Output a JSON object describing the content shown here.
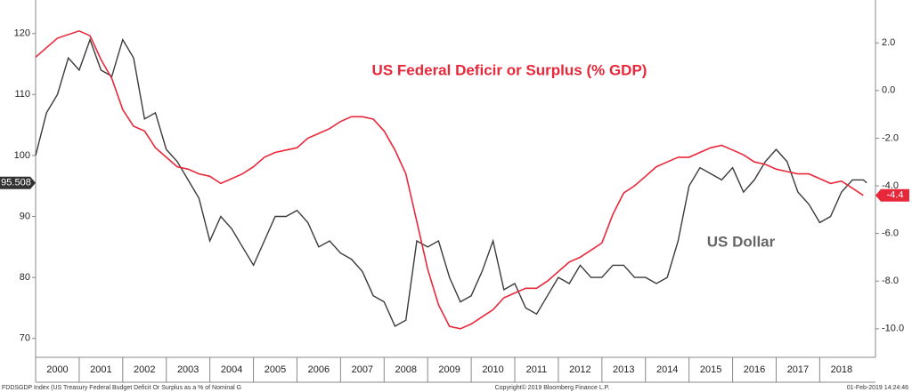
{
  "chart_data": {
    "type": "line",
    "xlim": [
      2000,
      2019.28
    ],
    "xticks": [
      {
        "value": 2000,
        "label": "2000"
      },
      {
        "value": 2001,
        "label": "2001"
      },
      {
        "value": 2002,
        "label": "2002"
      },
      {
        "value": 2003,
        "label": "2003"
      },
      {
        "value": 2004,
        "label": "2004"
      },
      {
        "value": 2005,
        "label": "2005"
      },
      {
        "value": 2006,
        "label": "2006"
      },
      {
        "value": 2007,
        "label": "2007"
      },
      {
        "value": 2008,
        "label": "2008"
      },
      {
        "value": 2009,
        "label": "2009"
      },
      {
        "value": 2010,
        "label": "2010"
      },
      {
        "value": 2011,
        "label": "2011"
      },
      {
        "value": 2012,
        "label": "2012"
      },
      {
        "value": 2013,
        "label": "2013"
      },
      {
        "value": 2014,
        "label": "2014"
      },
      {
        "value": 2015,
        "label": "2015"
      },
      {
        "value": 2016,
        "label": "2016"
      },
      {
        "value": 2017,
        "label": "2017"
      },
      {
        "value": 2018,
        "label": "2018"
      }
    ],
    "ylim": [
      66.9,
      125.5
    ],
    "yticks": [
      70,
      80,
      90,
      100,
      110,
      120
    ],
    "y2lim": [
      -11.2,
      3.8
    ],
    "y2ticks": [
      {
        "value": 2,
        "label": "2.0"
      },
      {
        "value": 0,
        "label": "0.0"
      },
      {
        "value": -2,
        "label": "-2.0"
      },
      {
        "value": -4,
        "label": "-4.0"
      },
      {
        "value": -6,
        "label": "-6.0"
      },
      {
        "value": -8,
        "label": "-8.0"
      },
      {
        "value": -10,
        "label": "-10.0"
      }
    ],
    "grid": false,
    "series": [
      {
        "name": "US Dollar",
        "color": "#3a3a3a",
        "axis": "y",
        "end_label": "95.508",
        "x": [
          2000,
          2000.25,
          2000.5,
          2000.75,
          2001,
          2001.25,
          2001.5,
          2001.75,
          2002,
          2002.25,
          2002.5,
          2002.75,
          2003,
          2003.25,
          2003.5,
          2003.75,
          2004,
          2004.25,
          2004.5,
          2004.75,
          2005,
          2005.25,
          2005.5,
          2005.75,
          2006,
          2006.25,
          2006.5,
          2006.75,
          2007,
          2007.25,
          2007.5,
          2007.75,
          2008,
          2008.25,
          2008.5,
          2008.75,
          2009,
          2009.25,
          2009.5,
          2009.75,
          2010,
          2010.25,
          2010.5,
          2010.75,
          2011,
          2011.25,
          2011.5,
          2011.75,
          2012,
          2012.25,
          2012.5,
          2012.75,
          2013,
          2013.25,
          2013.5,
          2013.75,
          2014,
          2014.25,
          2014.5,
          2014.75,
          2015,
          2015.25,
          2015.5,
          2015.75,
          2016,
          2016.25,
          2016.5,
          2016.75,
          2017,
          2017.25,
          2017.5,
          2017.75,
          2018,
          2018.25,
          2018.5,
          2018.75,
          2019,
          2019.08
        ],
        "values": [
          100,
          107,
          110,
          116,
          114,
          119,
          114,
          113,
          119,
          116,
          106,
          107,
          101,
          99,
          96,
          93,
          86,
          90,
          88,
          85,
          82,
          86,
          90,
          90,
          91,
          89,
          85,
          86,
          84,
          83,
          81,
          77,
          76,
          72,
          73,
          86,
          85,
          86,
          80,
          76,
          77,
          81,
          86,
          78,
          79,
          75,
          74,
          77,
          80,
          79,
          82,
          80,
          80,
          82,
          82,
          80,
          80,
          79,
          80,
          86,
          95,
          98,
          97,
          96,
          98,
          94,
          96,
          99,
          101,
          99,
          94,
          92,
          89,
          90,
          94,
          96,
          96,
          95.508
        ]
      },
      {
        "name": "US Federal Deficir or Surplus (% GDP)",
        "color": "#e8283a",
        "axis": "y2",
        "end_label": "-4.4",
        "x": [
          2000,
          2000.5,
          2001,
          2001.25,
          2001.5,
          2001.75,
          2002,
          2002.25,
          2002.5,
          2002.75,
          2003,
          2003.25,
          2003.5,
          2003.75,
          2004,
          2004.25,
          2004.5,
          2004.75,
          2005,
          2005.25,
          2005.5,
          2005.75,
          2006,
          2006.25,
          2006.5,
          2006.75,
          2007,
          2007.25,
          2007.5,
          2007.75,
          2008,
          2008.25,
          2008.5,
          2008.75,
          2009,
          2009.25,
          2009.5,
          2009.75,
          2010,
          2010.25,
          2010.5,
          2010.75,
          2011,
          2011.25,
          2011.5,
          2011.75,
          2012,
          2012.25,
          2012.5,
          2012.75,
          2013,
          2013.25,
          2013.5,
          2013.75,
          2014,
          2014.25,
          2014.5,
          2014.75,
          2015,
          2015.25,
          2015.5,
          2015.75,
          2016,
          2016.25,
          2016.5,
          2016.75,
          2017,
          2017.25,
          2017.5,
          2017.75,
          2018,
          2018.25,
          2018.5,
          2018.75,
          2019
        ],
        "values": [
          1.4,
          2.2,
          2.5,
          2.3,
          1.3,
          0.5,
          -0.8,
          -1.5,
          -1.7,
          -2.4,
          -2.8,
          -3.2,
          -3.3,
          -3.5,
          -3.6,
          -3.9,
          -3.7,
          -3.5,
          -3.2,
          -2.8,
          -2.6,
          -2.5,
          -2.4,
          -2,
          -1.8,
          -1.6,
          -1.3,
          -1.1,
          -1.1,
          -1.2,
          -1.7,
          -2.5,
          -3.5,
          -5.5,
          -7.5,
          -9,
          -9.9,
          -10,
          -9.8,
          -9.5,
          -9.2,
          -8.7,
          -8.5,
          -8.3,
          -8.3,
          -8,
          -7.6,
          -7.2,
          -7,
          -6.7,
          -6.4,
          -5.2,
          -4.3,
          -4,
          -3.6,
          -3.2,
          -3,
          -2.8,
          -2.8,
          -2.6,
          -2.4,
          -2.3,
          -2.5,
          -2.7,
          -3,
          -3.1,
          -3.3,
          -3.4,
          -3.5,
          -3.5,
          -3.7,
          -3.9,
          -3.8,
          -4.1,
          -4.4
        ]
      }
    ],
    "footer": {
      "left": "FDDSGDP Index (US Treasury Federal Budget Deficit Or Surplus as a % of Nominal G",
      "center": "Copyright© 2019 Bloomberg Finance L.P.",
      "right": "01-Feb-2019 14:24:46"
    }
  }
}
